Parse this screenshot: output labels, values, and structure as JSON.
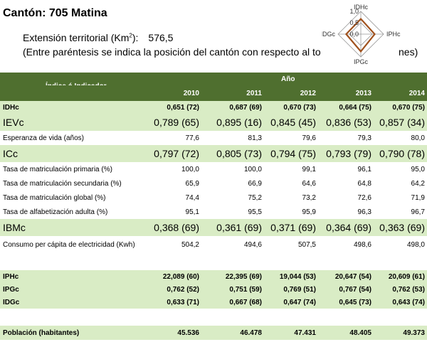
{
  "header": {
    "title": "Cantón: 705 Matina",
    "extension_label": "Extensión territorial (Km",
    "extension_unit_sup": "2",
    "extension_suffix": "):",
    "extension_value": "576,5",
    "note": "(Entre paréntesis se indica la posición del cantón con respecto al to",
    "note_end": "nes)"
  },
  "radar": {
    "axis_labels": [
      "IDHc",
      "IPHc",
      "IPGc",
      "IDGc"
    ],
    "scale_labels": [
      "1,0",
      "0,5",
      "0,0"
    ],
    "values": [
      0.67,
      0.609,
      0.762,
      0.643
    ],
    "colors": {
      "series": "#a0521e",
      "grid": "#999999"
    }
  },
  "table": {
    "indicator_header": "Índice ó Indicador",
    "year_header": "Año",
    "years": [
      "2010",
      "2011",
      "2012",
      "2013",
      "2014"
    ],
    "rows": [
      {
        "id": "idhc",
        "label": "IDHc",
        "style": "green-bold",
        "values": [
          "0,651 (72)",
          "0,687 (69)",
          "0,670 (73)",
          "0,664 (75)",
          "0,670 (75)"
        ]
      },
      {
        "id": "ievc",
        "label": "IEVc",
        "style": "green-big",
        "values": [
          "0,789 (65)",
          "0,895 (16)",
          "0,845 (45)",
          "0,836 (53)",
          "0,857 (34)"
        ]
      },
      {
        "id": "esperanza",
        "label": "Esperanza de vida (años)",
        "style": "plain",
        "values": [
          "77,6",
          "81,3",
          "79,6",
          "79,3",
          "80,0"
        ]
      },
      {
        "id": "icc",
        "label": "ICc",
        "style": "green-big",
        "values": [
          "0,797 (72)",
          "0,805 (73)",
          "0,794 (75)",
          "0,793 (79)",
          "0,790 (78)"
        ]
      },
      {
        "id": "mat-primaria",
        "label": "Tasa de matriculación primaria (%)",
        "style": "plain",
        "values": [
          "100,0",
          "100,0",
          "99,1",
          "96,1",
          "95,0"
        ]
      },
      {
        "id": "mat-secundaria",
        "label": "Tasa de matriculación secundaria (%)",
        "style": "plain",
        "values": [
          "65,9",
          "66,9",
          "64,6",
          "64,8",
          "64,2"
        ]
      },
      {
        "id": "mat-global",
        "label": "Tasa de matriculación global (%)",
        "style": "plain",
        "values": [
          "74,4",
          "75,2",
          "73,2",
          "72,6",
          "71,9"
        ]
      },
      {
        "id": "alfabetizacion",
        "label": "Tasa de alfabetización adulta (%)",
        "style": "plain",
        "values": [
          "95,1",
          "95,5",
          "95,9",
          "96,3",
          "96,7"
        ]
      },
      {
        "id": "ibmc",
        "label": "IBMc",
        "style": "green-big",
        "values": [
          "0,368 (69)",
          "0,361 (69)",
          "0,371 (69)",
          "0,364 (69)",
          "0,363 (69)"
        ]
      },
      {
        "id": "consumo",
        "label": "Consumo per cápita de electricidad (Kwh)",
        "style": "plain-tall",
        "values": [
          "504,2",
          "494,6",
          "507,5",
          "498,6",
          "498,0"
        ]
      }
    ],
    "rows2": [
      {
        "id": "iphc",
        "label": "IPHc",
        "style": "green-bold",
        "values": [
          "22,089 (60)",
          "22,395 (69)",
          "19,044 (53)",
          "20,647 (54)",
          "20,609 (61)"
        ]
      },
      {
        "id": "ipgc",
        "label": "IPGc",
        "style": "green-bold",
        "values": [
          "0,762 (52)",
          "0,751 (59)",
          "0,769 (51)",
          "0,767 (54)",
          "0,762 (53)"
        ]
      },
      {
        "id": "idgc",
        "label": "IDGc",
        "style": "green-bold",
        "values": [
          "0,633 (71)",
          "0,667 (68)",
          "0,647 (74)",
          "0,645 (73)",
          "0,643 (74)"
        ]
      }
    ],
    "poblacion": {
      "id": "poblacion",
      "label": "Población (habitantes)",
      "values": [
        "45.536",
        "46.478",
        "47.431",
        "48.405",
        "49.373"
      ]
    }
  }
}
